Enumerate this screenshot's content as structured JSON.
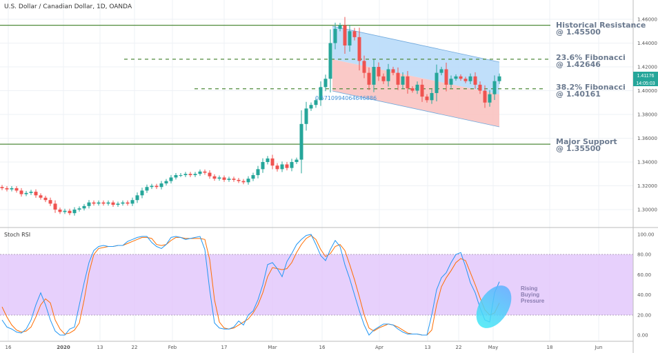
{
  "header": {
    "title": "U.S. Dollar / Canadian Dollar, 1D, OANDA"
  },
  "colors": {
    "up": "#26a69a",
    "down": "#ef5350",
    "support_resistance": "#4f8a3a",
    "fib": "#4f8a3a",
    "channel_upper": "#9fd0f7",
    "channel_lower": "#f7b7b5",
    "rsi_k": "#2196f3",
    "rsi_d": "#ff6d00",
    "rsi_band": "#e1c4fb",
    "price_label": "#26a69a"
  },
  "price_axis": {
    "ticks": [
      "1.46000",
      "1.44000",
      "1.42000",
      "1.40000",
      "1.38000",
      "1.36000",
      "1.34000",
      "1.32000",
      "1.30000"
    ],
    "current_price": "1.41176",
    "countdown": "14:05:03"
  },
  "time_axis": {
    "ticks": [
      "16",
      "2020",
      "13",
      "22",
      "Feb",
      "17",
      "Mar",
      "16",
      "Apr",
      "13",
      "22",
      "May",
      "18",
      "Jun"
    ]
  },
  "annotations": {
    "resistance": {
      "line1": "Historical Resistance",
      "line2": "@ 1.45500",
      "value": 1.455
    },
    "fib236": {
      "line1": "23.6% Fibonacci",
      "line2": "@ 1.42646",
      "value": 1.42646
    },
    "fib382": {
      "line1": "38.2% Fibonacci",
      "line2": "@ 1.40161",
      "value": 1.40161
    },
    "support": {
      "line1": "Major Support",
      "line2": "@ 1.35500",
      "value": 1.355
    },
    "channel_label": "0.5710994064646886",
    "rsi_note": {
      "line1": "Rising",
      "line2": "Buying",
      "line3": "Pressure"
    }
  },
  "rsi_panel": {
    "title": "Stoch RSI",
    "ticks": [
      "100.00",
      "80.00",
      "60.00",
      "40.00",
      "20.00",
      "0.00"
    ],
    "upper_band": 80,
    "lower_band": 20
  },
  "chart_data": {
    "type": "candlestick",
    "title": "U.S. Dollar / Canadian Dollar, 1D, OANDA",
    "ylim": [
      1.29,
      1.47
    ],
    "grid": true,
    "close": [
      1.318,
      1.317,
      1.318,
      1.316,
      1.313,
      1.314,
      1.315,
      1.312,
      1.31,
      1.308,
      1.305,
      1.3,
      1.298,
      1.299,
      1.297,
      1.3,
      1.301,
      1.303,
      1.306,
      1.305,
      1.306,
      1.305,
      1.306,
      1.304,
      1.305,
      1.306,
      1.305,
      1.308,
      1.312,
      1.316,
      1.319,
      1.32,
      1.319,
      1.322,
      1.324,
      1.327,
      1.329,
      1.329,
      1.33,
      1.329,
      1.33,
      1.332,
      1.331,
      1.328,
      1.326,
      1.327,
      1.325,
      1.326,
      1.325,
      1.324,
      1.323,
      1.326,
      1.329,
      1.334,
      1.34,
      1.343,
      1.337,
      1.334,
      1.338,
      1.335,
      1.34,
      1.342,
      1.372,
      1.385,
      1.388,
      1.392,
      1.403,
      1.41,
      1.44,
      1.452,
      1.455,
      1.438,
      1.45,
      1.445,
      1.425,
      1.415,
      1.405,
      1.42,
      1.412,
      1.408,
      1.418,
      1.415,
      1.405,
      1.412,
      1.402,
      1.4,
      1.405,
      1.395,
      1.392,
      1.398,
      1.415,
      1.418,
      1.405,
      1.41,
      1.412,
      1.41,
      1.408,
      1.412,
      1.405,
      1.4,
      1.39,
      1.397,
      1.408,
      1.412
    ],
    "stoch_rsi": {
      "ylim": [
        0,
        100
      ],
      "k": [
        15,
        8,
        6,
        3,
        2,
        6,
        15,
        30,
        42,
        30,
        15,
        4,
        0,
        0,
        6,
        8,
        30,
        52,
        72,
        84,
        88,
        89,
        88,
        88,
        89,
        89,
        93,
        95,
        97,
        98,
        98,
        92,
        88,
        86,
        90,
        97,
        98,
        97,
        95,
        96,
        97,
        98,
        85,
        45,
        12,
        7,
        6,
        6,
        8,
        14,
        10,
        20,
        24,
        35,
        50,
        70,
        72,
        66,
        58,
        73,
        81,
        90,
        95,
        99,
        100,
        90,
        79,
        74,
        85,
        94,
        88,
        70,
        56,
        40,
        24,
        10,
        0,
        5,
        8,
        11,
        11,
        10,
        6,
        3,
        1,
        1,
        1,
        0,
        0,
        20,
        45,
        57,
        62,
        72,
        80,
        82,
        68,
        52,
        42,
        27,
        15,
        13,
        42,
        53
      ],
      "d": [
        28,
        18,
        10,
        5,
        3,
        4,
        8,
        18,
        30,
        36,
        32,
        15,
        6,
        1,
        2,
        5,
        12,
        35,
        62,
        80,
        86,
        87,
        88,
        88,
        89,
        89,
        91,
        93,
        95,
        97,
        97,
        96,
        90,
        89,
        90,
        94,
        97,
        97,
        96,
        96,
        96,
        96,
        95,
        75,
        35,
        13,
        7,
        6,
        7,
        10,
        13,
        16,
        22,
        30,
        42,
        58,
        67,
        66,
        65,
        66,
        72,
        82,
        90,
        96,
        99,
        95,
        85,
        78,
        81,
        88,
        90,
        84,
        70,
        55,
        38,
        20,
        7,
        4,
        7,
        9,
        11,
        10,
        8,
        5,
        2,
        1,
        1,
        0,
        0,
        5,
        30,
        48,
        57,
        64,
        72,
        76,
        74,
        62,
        50,
        37,
        25,
        20,
        22,
        32
      ]
    }
  }
}
